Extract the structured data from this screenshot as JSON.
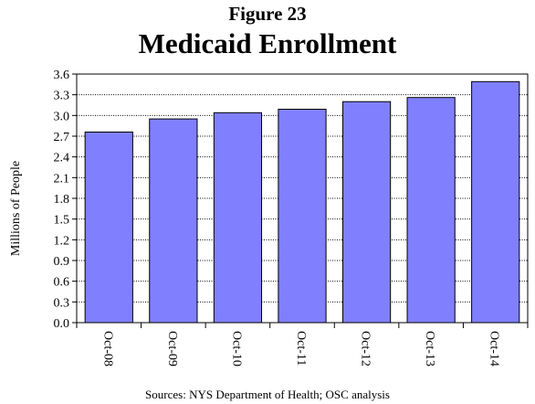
{
  "figure_label": "Figure 23",
  "source_note": "Sources: NYS Department of Health; OSC analysis",
  "colors": {
    "bar": "#8080ff",
    "bar_edge": "#000000",
    "grid": "#000000"
  },
  "chart_data": {
    "type": "bar",
    "title": "Medicaid Enrollment",
    "xlabel": "",
    "ylabel": "Millions of People",
    "categories": [
      "Oct-08",
      "Oct-09",
      "Oct-10",
      "Oct-11",
      "Oct-12",
      "Oct-13",
      "Oct-14"
    ],
    "values": [
      2.76,
      2.95,
      3.04,
      3.09,
      3.2,
      3.26,
      3.49
    ],
    "ylim": [
      0,
      3.6
    ],
    "yticks": [
      "0.0",
      "0.3",
      "0.6",
      "0.9",
      "1.2",
      "1.5",
      "1.8",
      "2.1",
      "2.4",
      "2.7",
      "3.0",
      "3.3",
      "3.6"
    ],
    "grid": "horizontal dotted",
    "legend": "none"
  }
}
